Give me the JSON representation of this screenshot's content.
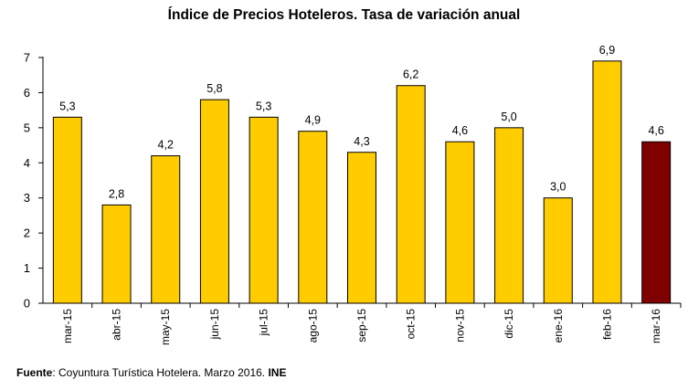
{
  "chart_data": {
    "type": "bar",
    "title": "Índice de Precios Hoteleros. Tasa de variación anual",
    "categories": [
      "mar-15",
      "abr-15",
      "may-15",
      "jun-15",
      "jul-15",
      "ago-15",
      "sep-15",
      "oct-15",
      "nov-15",
      "dic-15",
      "ene-16",
      "feb-16",
      "mar-16"
    ],
    "values": [
      5.3,
      2.8,
      4.2,
      5.8,
      5.3,
      4.9,
      4.3,
      6.2,
      4.6,
      5.0,
      3.0,
      6.9,
      4.6
    ],
    "data_labels": [
      "5,3",
      "2,8",
      "4,2",
      "5,8",
      "5,3",
      "4,9",
      "4,3",
      "6,2",
      "4,6",
      "5,0",
      "3,0",
      "6,9",
      "4,6"
    ],
    "y_ticks": [
      "0",
      "1",
      "2",
      "3",
      "4",
      "5",
      "6",
      "7"
    ],
    "ylim": [
      0,
      7
    ],
    "xlabel": "",
    "ylabel": "",
    "grid": false,
    "legend": "none",
    "colors": {
      "bar": "#FFCC00",
      "highlight": "#800000",
      "border": "#000000"
    },
    "highlight_index": 12
  },
  "source": {
    "prefix": "Fuente",
    "text": ": Coyuntura Turística Hotelera. Marzo 2016. ",
    "org": "INE"
  }
}
